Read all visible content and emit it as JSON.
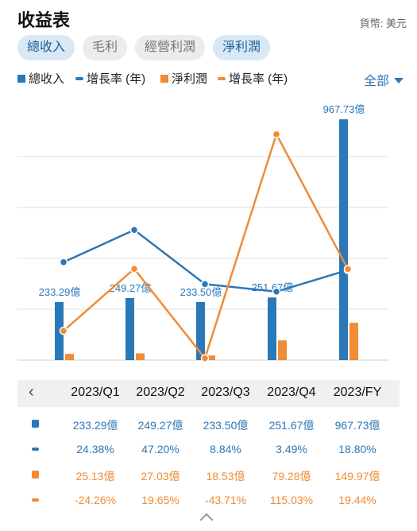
{
  "header": {
    "title": "收益表",
    "currency": "貨幣: 美元"
  },
  "tabs": [
    {
      "label": "總收入",
      "active": true
    },
    {
      "label": "毛利",
      "active": false
    },
    {
      "label": "經營利潤",
      "active": false
    },
    {
      "label": "淨利潤",
      "active": true
    }
  ],
  "legend": {
    "revenue": "總收入",
    "revenue_growth": "增長率 (年)",
    "net_income": "淨利潤",
    "net_income_growth": "增長率 (年)",
    "filter": "全部"
  },
  "colors": {
    "blue": "#2b78b8",
    "orange": "#ef8c35",
    "grid": "#e2e2e2"
  },
  "nav_icon": "chevron-left-icon",
  "chart_data": {
    "type": "bar",
    "categories": [
      "2023/Q1",
      "2023/Q2",
      "2023/Q3",
      "2023/Q4",
      "2023/FY"
    ],
    "series": [
      {
        "name": "總收入",
        "kind": "bar",
        "values": [
          233.29,
          249.27,
          233.5,
          251.67,
          967.73
        ],
        "labels": [
          "233.29億",
          "249.27億",
          "233.50億",
          "251.67億",
          "967.73億"
        ]
      },
      {
        "name": "增長率 (年)",
        "kind": "line",
        "values": [
          24.38,
          47.2,
          8.84,
          3.49,
          18.8
        ],
        "labels": [
          "24.38%",
          "47.20%",
          "8.84%",
          "3.49%",
          "18.80%"
        ]
      },
      {
        "name": "淨利潤",
        "kind": "bar",
        "values": [
          25.13,
          27.03,
          18.53,
          79.28,
          149.97
        ],
        "labels": [
          "25.13億",
          "27.03億",
          "18.53億",
          "79.28億",
          "149.97億"
        ]
      },
      {
        "name": "增長率 (年)",
        "kind": "line",
        "values": [
          -24.26,
          19.65,
          -43.71,
          115.03,
          19.44
        ],
        "labels": [
          "-24.26%",
          "19.65%",
          "-43.71%",
          "115.03%",
          "19.44%"
        ]
      }
    ],
    "bar_ylim": [
      0,
      1000
    ],
    "growth_ylim": [
      -45,
      120
    ],
    "grid": true,
    "legend_position": "top"
  }
}
